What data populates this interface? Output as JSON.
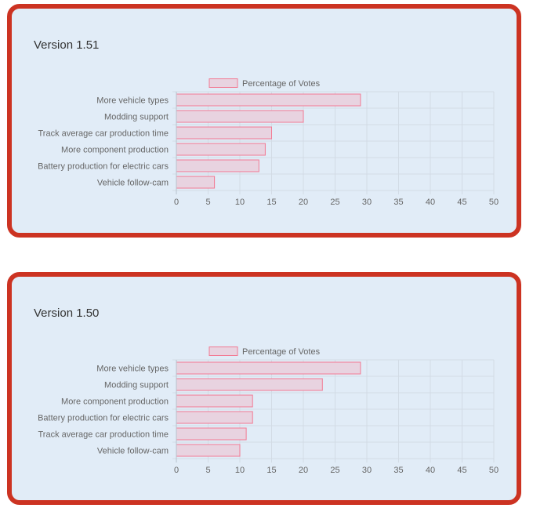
{
  "charts": [
    {
      "title": "Version 1.51",
      "chart_data": {
        "type": "bar",
        "orientation": "horizontal",
        "categories": [
          "More vehicle types",
          "Modding support",
          "Track average car production time",
          "More component production",
          "Battery production for electric cars",
          "Vehicle follow-cam"
        ],
        "series": [
          {
            "name": "Percentage of Votes",
            "values": [
              29,
              20,
              15,
              14,
              13,
              6
            ]
          }
        ],
        "xlim": [
          0,
          50
        ],
        "xticks": [
          "0",
          "5",
          "10",
          "15",
          "20",
          "25",
          "30",
          "35",
          "40",
          "45",
          "50"
        ],
        "legend": "top",
        "grid": true,
        "colors": {
          "fill": "#e8d3e0",
          "stroke": "#f27a93",
          "grid": "#d2dbe5",
          "text": "#666666"
        }
      }
    },
    {
      "title": "Version 1.50",
      "chart_data": {
        "type": "bar",
        "orientation": "horizontal",
        "categories": [
          "More vehicle types",
          "Modding support",
          "More component production",
          "Battery production for electric cars",
          "Track average car production time",
          "Vehicle follow-cam"
        ],
        "series": [
          {
            "name": "Percentage of Votes",
            "values": [
              29,
              23,
              12,
              12,
              11,
              10
            ]
          }
        ],
        "xlim": [
          0,
          50
        ],
        "xticks": [
          "0",
          "5",
          "10",
          "15",
          "20",
          "25",
          "30",
          "35",
          "40",
          "45",
          "50"
        ],
        "legend": "top",
        "grid": true,
        "colors": {
          "fill": "#e8d3e0",
          "stroke": "#f27a93",
          "grid": "#d2dbe5",
          "text": "#666666"
        }
      }
    }
  ]
}
